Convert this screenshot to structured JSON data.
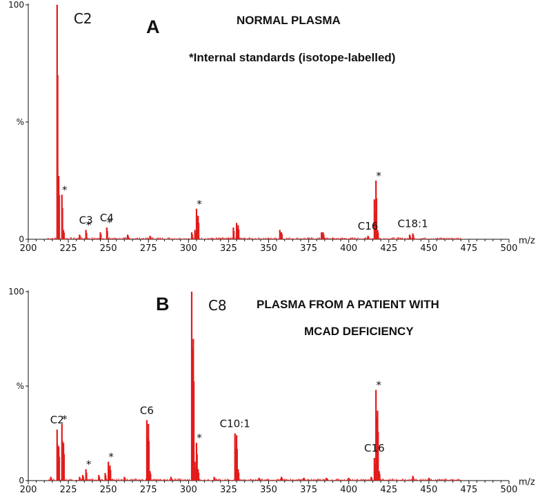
{
  "chart_data": [
    {
      "type": "bar",
      "panel": "A",
      "title": "NORMAL PLASMA",
      "subtitle": "*Internal standards (isotope-labelled)",
      "xlabel": "m/z",
      "ylabel": "%",
      "xlim": [
        200,
        500
      ],
      "ylim": [
        0,
        100
      ],
      "x_ticks": [
        "200",
        "225",
        "250",
        "275",
        "300",
        "325",
        "350",
        "375",
        "400",
        "425",
        "450",
        "475",
        "500"
      ],
      "y_ticks": [
        "0",
        "%",
        "100"
      ],
      "grid": false,
      "peaks": [
        {
          "x": 218,
          "y": 100
        },
        {
          "x": 219,
          "y": 27
        },
        {
          "x": 221,
          "y": 19
        },
        {
          "x": 222,
          "y": 4
        },
        {
          "x": 232,
          "y": 2
        },
        {
          "x": 236,
          "y": 4
        },
        {
          "x": 245,
          "y": 3
        },
        {
          "x": 249,
          "y": 5
        },
        {
          "x": 262,
          "y": 2
        },
        {
          "x": 276,
          "y": 1.5
        },
        {
          "x": 302,
          "y": 3
        },
        {
          "x": 304,
          "y": 4
        },
        {
          "x": 305,
          "y": 13
        },
        {
          "x": 306,
          "y": 10
        },
        {
          "x": 328,
          "y": 5
        },
        {
          "x": 330,
          "y": 7
        },
        {
          "x": 331,
          "y": 6
        },
        {
          "x": 357,
          "y": 4
        },
        {
          "x": 358,
          "y": 3
        },
        {
          "x": 383,
          "y": 3
        },
        {
          "x": 384,
          "y": 3
        },
        {
          "x": 412,
          "y": 1.5
        },
        {
          "x": 416,
          "y": 17
        },
        {
          "x": 417,
          "y": 25
        },
        {
          "x": 418,
          "y": 4
        },
        {
          "x": 438,
          "y": 2
        },
        {
          "x": 440,
          "y": 2.5
        }
      ],
      "labels": [
        {
          "text": "C2",
          "x": 218,
          "y": 100
        },
        {
          "text": "C3",
          "x": 236,
          "y": 4
        },
        {
          "text": "C4",
          "x": 249,
          "y": 5
        },
        {
          "text": "C16",
          "x": 412,
          "y": 1.5
        },
        {
          "text": "C18:1",
          "x": 440,
          "y": 2.5
        }
      ],
      "asterisks": [
        {
          "x": 221,
          "y": 19
        },
        {
          "x": 236,
          "y": 4
        },
        {
          "x": 249,
          "y": 5
        },
        {
          "x": 305,
          "y": 13
        },
        {
          "x": 417,
          "y": 25
        }
      ]
    },
    {
      "type": "bar",
      "panel": "B",
      "title": "PLASMA FROM A PATIENT WITH",
      "subtitle": "MCAD DEFICIENCY",
      "xlabel": "m/z",
      "ylabel": "%",
      "xlim": [
        200,
        500
      ],
      "ylim": [
        0,
        100
      ],
      "x_ticks": [
        "200",
        "225",
        "250",
        "275",
        "300",
        "325",
        "350",
        "375",
        "400",
        "425",
        "450",
        "475",
        "500"
      ],
      "y_ticks": [
        "0",
        "%",
        "100"
      ],
      "grid": false,
      "peaks": [
        {
          "x": 214,
          "y": 2
        },
        {
          "x": 218,
          "y": 27
        },
        {
          "x": 219,
          "y": 18
        },
        {
          "x": 221,
          "y": 30
        },
        {
          "x": 222,
          "y": 20
        },
        {
          "x": 232,
          "y": 2
        },
        {
          "x": 234,
          "y": 3
        },
        {
          "x": 236,
          "y": 6
        },
        {
          "x": 244,
          "y": 3
        },
        {
          "x": 248,
          "y": 4
        },
        {
          "x": 250,
          "y": 10
        },
        {
          "x": 251,
          "y": 8
        },
        {
          "x": 260,
          "y": 2
        },
        {
          "x": 274,
          "y": 32
        },
        {
          "x": 275,
          "y": 30
        },
        {
          "x": 276,
          "y": 5
        },
        {
          "x": 289,
          "y": 2
        },
        {
          "x": 302,
          "y": 100
        },
        {
          "x": 303,
          "y": 75
        },
        {
          "x": 304,
          "y": 10
        },
        {
          "x": 305,
          "y": 20
        },
        {
          "x": 306,
          "y": 6
        },
        {
          "x": 316,
          "y": 2
        },
        {
          "x": 329,
          "y": 25
        },
        {
          "x": 330,
          "y": 24
        },
        {
          "x": 331,
          "y": 6
        },
        {
          "x": 344,
          "y": 1.5
        },
        {
          "x": 358,
          "y": 2
        },
        {
          "x": 372,
          "y": 1.5
        },
        {
          "x": 386,
          "y": 1.5
        },
        {
          "x": 400,
          "y": 1.5
        },
        {
          "x": 414,
          "y": 2
        },
        {
          "x": 416,
          "y": 12
        },
        {
          "x": 417,
          "y": 48
        },
        {
          "x": 418,
          "y": 37
        },
        {
          "x": 419,
          "y": 5
        },
        {
          "x": 440,
          "y": 2.5
        },
        {
          "x": 450,
          "y": 1.5
        }
      ],
      "labels": [
        {
          "text": "C2",
          "x": 218,
          "y": 27
        },
        {
          "text": "C6",
          "x": 274,
          "y": 32
        },
        {
          "text": "C8",
          "x": 302,
          "y": 100
        },
        {
          "text": "C10:1",
          "x": 329,
          "y": 25
        },
        {
          "text": "C16",
          "x": 416,
          "y": 12
        }
      ],
      "asterisks": [
        {
          "x": 221,
          "y": 30
        },
        {
          "x": 236,
          "y": 6
        },
        {
          "x": 250,
          "y": 10
        },
        {
          "x": 305,
          "y": 20
        },
        {
          "x": 417,
          "y": 48
        }
      ]
    }
  ]
}
